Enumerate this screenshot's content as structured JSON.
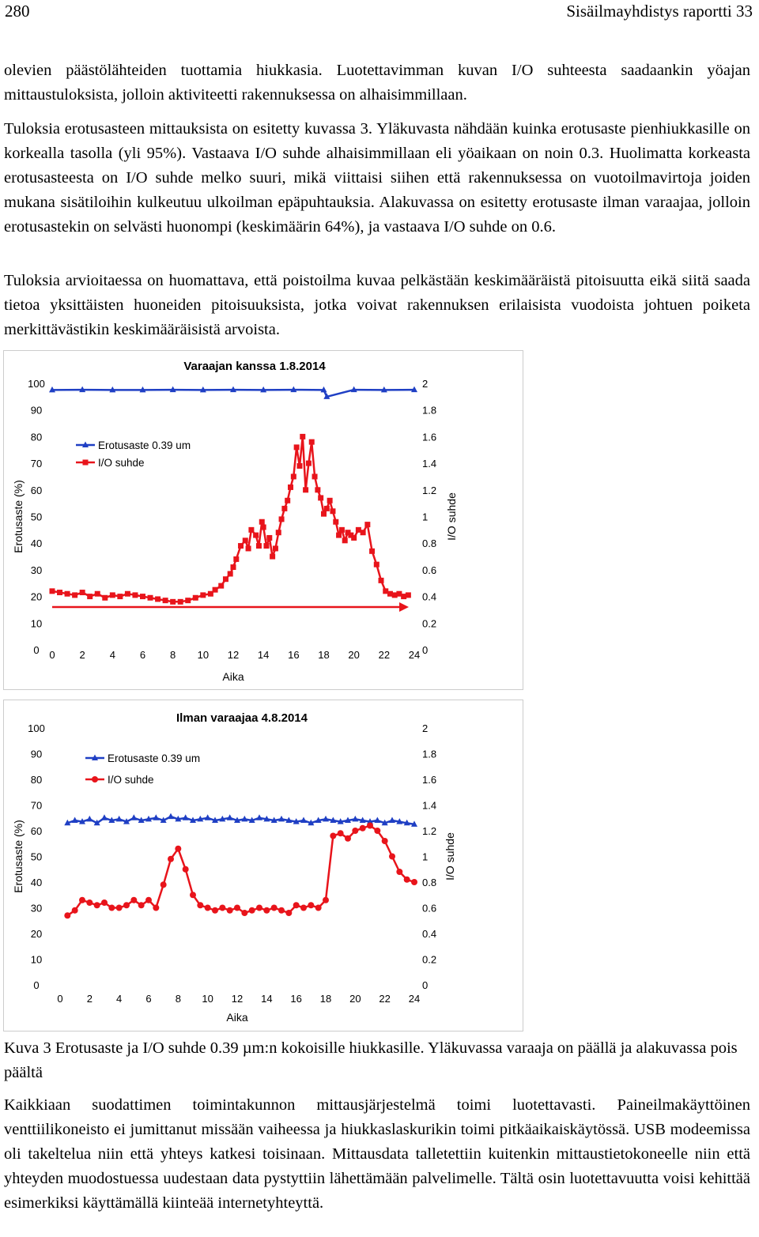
{
  "header": {
    "page_number": "280",
    "running_title": "Sisäilmayhdistys raportti 33"
  },
  "paragraphs": {
    "p1": "olevien päästölähteiden tuottamia hiukkasia. Luotettavimman kuvan I/O suhteesta saadaankin yöajan mittaustuloksista, jolloin aktiviteetti rakennuksessa on alhaisimmillaan.",
    "p2": "Tuloksia erotusasteen mittauksista on esitetty kuvassa 3. Yläkuvasta nähdään kuinka erotusaste pienhiukkasille on korkealla tasolla (yli 95%). Vastaava I/O suhde alhaisimmillaan eli yöaikaan on noin 0.3. Huolimatta korkeasta erotusasteesta on I/O suhde melko suuri, mikä viittaisi siihen että rakennuksessa on vuotoilmavirtoja joiden mukana sisätiloihin kulkeutuu ulkoilman epäpuhtauksia. Alakuvassa on esitetty erotusaste ilman varaajaa, jolloin erotusastekin on selvästi huonompi (keskimäärin 64%), ja vastaava I/O suhde on 0.6.",
    "p3": "Tuloksia arvioitaessa on huomattava, että poistoilma kuvaa pelkästään keskimääräistä pitoisuutta eikä siitä saada tietoa yksittäisten huoneiden pitoisuuksista, jotka voivat rakennuksen erilaisista vuodoista johtuen poiketa merkittävästikin keskimääräisistä arvoista.",
    "caption": "Kuva 3 Erotusaste ja I/O suhde 0.39 µm:n kokoisille hiukkasille. Yläkuvassa varaaja on päällä ja alakuvassa pois päältä",
    "p4": "Kaikkiaan suodattimen toimintakunnon mittausjärjestelmä toimi luotettavasti. Paineilmakäyttöinen venttiilikoneisto ei jumittanut missään vaiheessa ja hiukkaslaskurikin toimi pitkäaikaiskäytössä. USB modeemissa oli takeltelua niin että yhteys katkesi toisinaan. Mittausdata talletettiin kuitenkin mittaustietokoneelle niin että yhteyden muodostuessa uudestaan data pystyttiin lähettämään palvelimelle. Tältä osin luotettavuutta voisi kehittää esimerkiksi käyttämällä kiinteää internetyhteyttä."
  },
  "colors": {
    "erotusaste": "#1f3fc4",
    "io": "#e8141b",
    "arrow": "#e8141b",
    "frame": "#cccccc"
  },
  "chart_data": [
    {
      "type": "line",
      "title": "Varaajan kanssa 1.8.2014",
      "xlabel": "Aika",
      "ylabel": "Erotusaste (%)",
      "y2label": "I/O suhde",
      "xlim": [
        0,
        24
      ],
      "ylim": [
        0,
        100
      ],
      "y2lim": [
        0,
        2
      ],
      "xticks": [
        "0",
        "2",
        "4",
        "6",
        "8",
        "10",
        "12",
        "14",
        "16",
        "18",
        "20",
        "22",
        "24"
      ],
      "yticks": [
        "0",
        "10",
        "20",
        "30",
        "40",
        "50",
        "60",
        "70",
        "80",
        "90",
        "100"
      ],
      "y2ticks": [
        "0",
        "0.2",
        "0.4",
        "0.6",
        "0.8",
        "1",
        "1.2",
        "1.4",
        "1.6",
        "1.8",
        "2"
      ],
      "legend_position": "upper-left",
      "series": [
        {
          "name": "Erotusaste 0.39 um",
          "axis": "left",
          "marker": "triangle",
          "color": "#1f3fc4",
          "x": [
            0,
            2,
            4,
            6,
            8,
            10,
            12,
            14,
            16,
            18,
            18.2,
            20,
            22,
            24
          ],
          "y": [
            97.5,
            97.6,
            97.5,
            97.5,
            97.6,
            97.5,
            97.6,
            97.5,
            97.6,
            97.5,
            95,
            97.6,
            97.5,
            97.6
          ]
        },
        {
          "name": "I/O suhde",
          "axis": "right",
          "marker": "square",
          "color": "#e8141b",
          "x": [
            0,
            0.5,
            1,
            1.5,
            2,
            2.5,
            3,
            3.5,
            4,
            4.5,
            5,
            5.5,
            6,
            6.5,
            7,
            7.5,
            8,
            8.5,
            9,
            9.5,
            10,
            10.5,
            10.8,
            11.2,
            11.5,
            11.8,
            12,
            12.2,
            12.5,
            12.8,
            13,
            13.2,
            13.5,
            13.7,
            13.9,
            14,
            14.2,
            14.4,
            14.6,
            14.8,
            15,
            15.2,
            15.4,
            15.6,
            15.8,
            16,
            16.2,
            16.4,
            16.6,
            16.8,
            17,
            17.2,
            17.4,
            17.6,
            17.8,
            18,
            18.2,
            18.4,
            18.6,
            18.8,
            19,
            19.2,
            19.4,
            19.6,
            19.8,
            20,
            20.3,
            20.6,
            20.9,
            21.2,
            21.5,
            21.8,
            22.1,
            22.4,
            22.7,
            23,
            23.3,
            23.6
          ],
          "y": [
            0.44,
            0.43,
            0.42,
            0.41,
            0.43,
            0.4,
            0.42,
            0.39,
            0.41,
            0.4,
            0.42,
            0.41,
            0.4,
            0.39,
            0.38,
            0.37,
            0.36,
            0.36,
            0.37,
            0.39,
            0.41,
            0.42,
            0.45,
            0.48,
            0.53,
            0.57,
            0.62,
            0.68,
            0.78,
            0.82,
            0.76,
            0.9,
            0.86,
            0.78,
            0.96,
            0.92,
            0.78,
            0.84,
            0.7,
            0.76,
            0.88,
            0.98,
            1.06,
            1.12,
            1.22,
            1.3,
            1.52,
            1.38,
            1.6,
            1.2,
            1.4,
            1.56,
            1.3,
            1.2,
            1.14,
            1.02,
            1.06,
            1.12,
            1.04,
            0.96,
            0.86,
            0.9,
            0.82,
            0.88,
            0.86,
            0.84,
            0.9,
            0.88,
            0.94,
            0.74,
            0.64,
            0.52,
            0.44,
            0.42,
            0.41,
            0.42,
            0.4,
            0.41
          ]
        }
      ]
    },
    {
      "type": "line",
      "title": "Ilman varaajaa 4.8.2014",
      "xlabel": "Aika",
      "ylabel": "Erotusaste (%)",
      "y2label": "I/O suhde",
      "xlim": [
        0,
        24
      ],
      "ylim": [
        0,
        100
      ],
      "y2lim": [
        0,
        2
      ],
      "xticks": [
        "0",
        "2",
        "4",
        "6",
        "8",
        "10",
        "12",
        "14",
        "16",
        "18",
        "20",
        "22",
        "24"
      ],
      "yticks": [
        "0",
        "10",
        "20",
        "30",
        "40",
        "50",
        "60",
        "70",
        "80",
        "90",
        "100"
      ],
      "y2ticks": [
        "0",
        "0.2",
        "0.4",
        "0.6",
        "0.8",
        "1",
        "1.2",
        "1.4",
        "1.6",
        "1.8",
        "2"
      ],
      "legend_position": "upper-left",
      "series": [
        {
          "name": "Erotusaste 0.39 um",
          "axis": "left",
          "marker": "triangle",
          "color": "#1f3fc4",
          "x": [
            0.5,
            1,
            1.5,
            2,
            2.5,
            3,
            3.5,
            4,
            4.5,
            5,
            5.5,
            6,
            6.5,
            7,
            7.5,
            8,
            8.5,
            9,
            9.5,
            10,
            10.5,
            11,
            11.5,
            12,
            12.5,
            13,
            13.5,
            14,
            14.5,
            15,
            15.5,
            16,
            16.5,
            17,
            17.5,
            18,
            18.5,
            19,
            19.5,
            20,
            20.5,
            21,
            21.5,
            22,
            22.5,
            23,
            23.5,
            24
          ],
          "y": [
            63,
            64,
            63.5,
            64.5,
            63,
            65,
            64,
            64.5,
            63.5,
            65,
            64,
            64.5,
            65,
            64,
            65.5,
            64.5,
            65,
            64,
            64.5,
            65,
            64,
            64.5,
            65,
            64,
            64.5,
            64,
            65,
            64.5,
            64,
            64.5,
            64,
            63.5,
            64,
            63,
            64,
            64.5,
            64,
            63.5,
            64,
            64.5,
            64,
            63.5,
            64,
            63,
            64,
            63.5,
            63,
            62.5
          ]
        },
        {
          "name": "I/O suhde",
          "axis": "right",
          "marker": "circle",
          "color": "#e8141b",
          "x": [
            0.5,
            1,
            1.5,
            2,
            2.5,
            3,
            3.5,
            4,
            4.5,
            5,
            5.5,
            6,
            6.5,
            7,
            7.5,
            8,
            8.5,
            9,
            9.5,
            10,
            10.5,
            11,
            11.5,
            12,
            12.5,
            13,
            13.5,
            14,
            14.5,
            15,
            15.5,
            16,
            16.5,
            17,
            17.5,
            18,
            18.5,
            19,
            19.5,
            20,
            20.5,
            21,
            21.5,
            22,
            22.5,
            23,
            23.5,
            24
          ],
          "y": [
            0.54,
            0.58,
            0.66,
            0.64,
            0.62,
            0.64,
            0.6,
            0.6,
            0.62,
            0.66,
            0.62,
            0.66,
            0.6,
            0.78,
            0.98,
            1.06,
            0.9,
            0.7,
            0.62,
            0.6,
            0.58,
            0.6,
            0.58,
            0.6,
            0.56,
            0.58,
            0.6,
            0.58,
            0.6,
            0.58,
            0.56,
            0.62,
            0.6,
            0.62,
            0.6,
            0.66,
            1.16,
            1.18,
            1.14,
            1.2,
            1.22,
            1.24,
            1.2,
            1.12,
            1.0,
            0.88,
            0.82,
            0.8
          ]
        }
      ]
    }
  ]
}
